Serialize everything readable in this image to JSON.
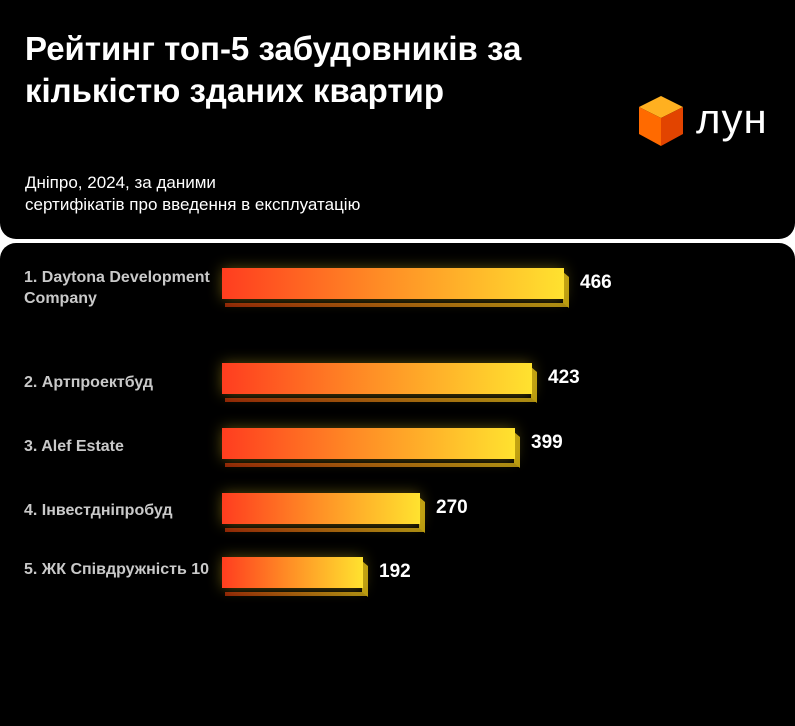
{
  "header": {
    "title": "Рейтинг топ-5 забудовників за кількістю зданих квартир",
    "subtitle_line1": "Дніпро, 2024, за даними",
    "subtitle_line2": "сертифікатів про введення в експлуатацію",
    "logo_text": "лун",
    "logo_icon": "orange-cube-icon"
  },
  "colors": {
    "background": "#000000",
    "bar_start": "#ff3d1f",
    "bar_end": "#ffe22f",
    "logo_cube": "#ff6a00"
  },
  "chart_data": {
    "type": "bar",
    "orientation": "horizontal",
    "categories": [
      "1. Daytona Development Company",
      "2. Артпроектбуд",
      "3. Alef Estate",
      "4. Інвестдніпробуд",
      "5. ЖК Співдружність 10"
    ],
    "values": [
      466,
      423,
      399,
      270,
      192
    ],
    "title": "Рейтинг топ-5 забудовників за кількістю зданих квартир",
    "subtitle": "Дніпро, 2024, за даними сертифікатів про введення в експлуатацію",
    "xlim": [
      0,
      466
    ],
    "grid": false,
    "legend": "none"
  }
}
